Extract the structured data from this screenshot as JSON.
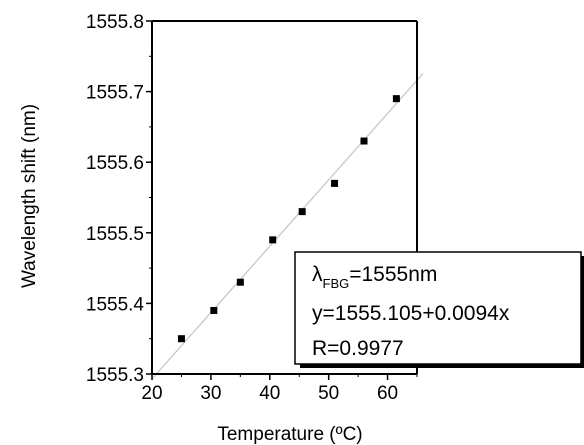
{
  "chart_data": {
    "type": "scatter",
    "xlabel": "Temperature (ºC)",
    "ylabel": "Wavelength shift (nm)",
    "xlim": [
      20,
      65
    ],
    "ylim": [
      1555.3,
      1555.8
    ],
    "xticks": [
      20,
      30,
      40,
      50,
      60
    ],
    "yticks": [
      1555.3,
      1555.4,
      1555.5,
      1555.6,
      1555.7,
      1555.8
    ],
    "xtick_labels": [
      "20",
      "30",
      "40",
      "50",
      "60"
    ],
    "ytick_labels": [
      "1555.3",
      "1555.4",
      "1555.5",
      "1555.6",
      "1555.7",
      "1555.8"
    ],
    "grid": false,
    "series": [
      {
        "marker": "square",
        "color": "#000000",
        "x": [
          25,
          30.5,
          35,
          40.5,
          45.5,
          51,
          56,
          61.5
        ],
        "y": [
          1555.35,
          1555.39,
          1555.43,
          1555.49,
          1555.53,
          1555.57,
          1555.63,
          1555.69
        ]
      }
    ],
    "fit": {
      "intercept": 1555.105,
      "slope": 0.0094,
      "color": "#c8c8c8"
    },
    "annotation": {
      "lambda_symbol": "λ",
      "lambda_subscript": "FBG",
      "lambda_value": "=1555nm",
      "equation": "y=1555.105+0.0094x",
      "r_value": "R=0.9977"
    }
  }
}
